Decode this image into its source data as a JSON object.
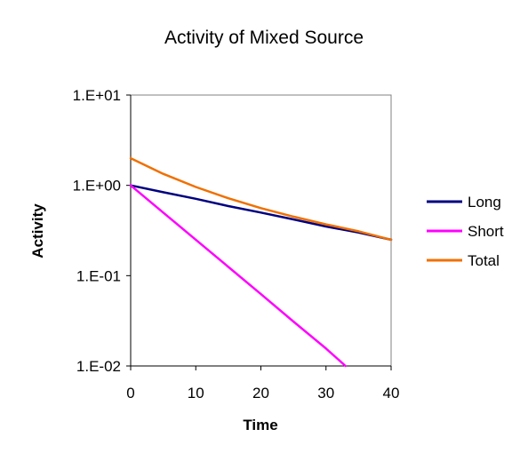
{
  "chart_data": {
    "type": "line",
    "title": "Activity of Mixed Source",
    "xlabel": "Time",
    "ylabel": "Activity",
    "xlim": [
      0,
      40
    ],
    "ylim": [
      0.01,
      10
    ],
    "yscale": "log",
    "grid": false,
    "legend_position": "right",
    "x_ticks": [
      0,
      10,
      20,
      30,
      40
    ],
    "x_tick_labels": [
      "0",
      "10",
      "20",
      "30",
      "40"
    ],
    "y_ticks": [
      10,
      1,
      0.1,
      0.01
    ],
    "y_tick_labels": [
      "1.E+01",
      "1.E+00",
      "1.E-01",
      "1.E-02"
    ],
    "series": [
      {
        "name": "Long",
        "color": "#000080",
        "x": [
          0,
          5,
          10,
          15,
          20,
          25,
          30,
          35,
          40
        ],
        "values": [
          1.0,
          0.84,
          0.71,
          0.59,
          0.5,
          0.42,
          0.35,
          0.3,
          0.25
        ]
      },
      {
        "name": "Short",
        "color": "#ff00ff",
        "x": [
          0,
          5,
          10,
          15,
          20,
          25,
          30,
          33
        ],
        "values": [
          1.0,
          0.5,
          0.25,
          0.125,
          0.0625,
          0.031,
          0.0156,
          0.01
        ]
      },
      {
        "name": "Total",
        "color": "#f07000",
        "x": [
          0,
          5,
          10,
          15,
          20,
          25,
          30,
          35,
          40
        ],
        "values": [
          2.0,
          1.34,
          0.96,
          0.72,
          0.56,
          0.45,
          0.37,
          0.31,
          0.25
        ]
      }
    ]
  }
}
